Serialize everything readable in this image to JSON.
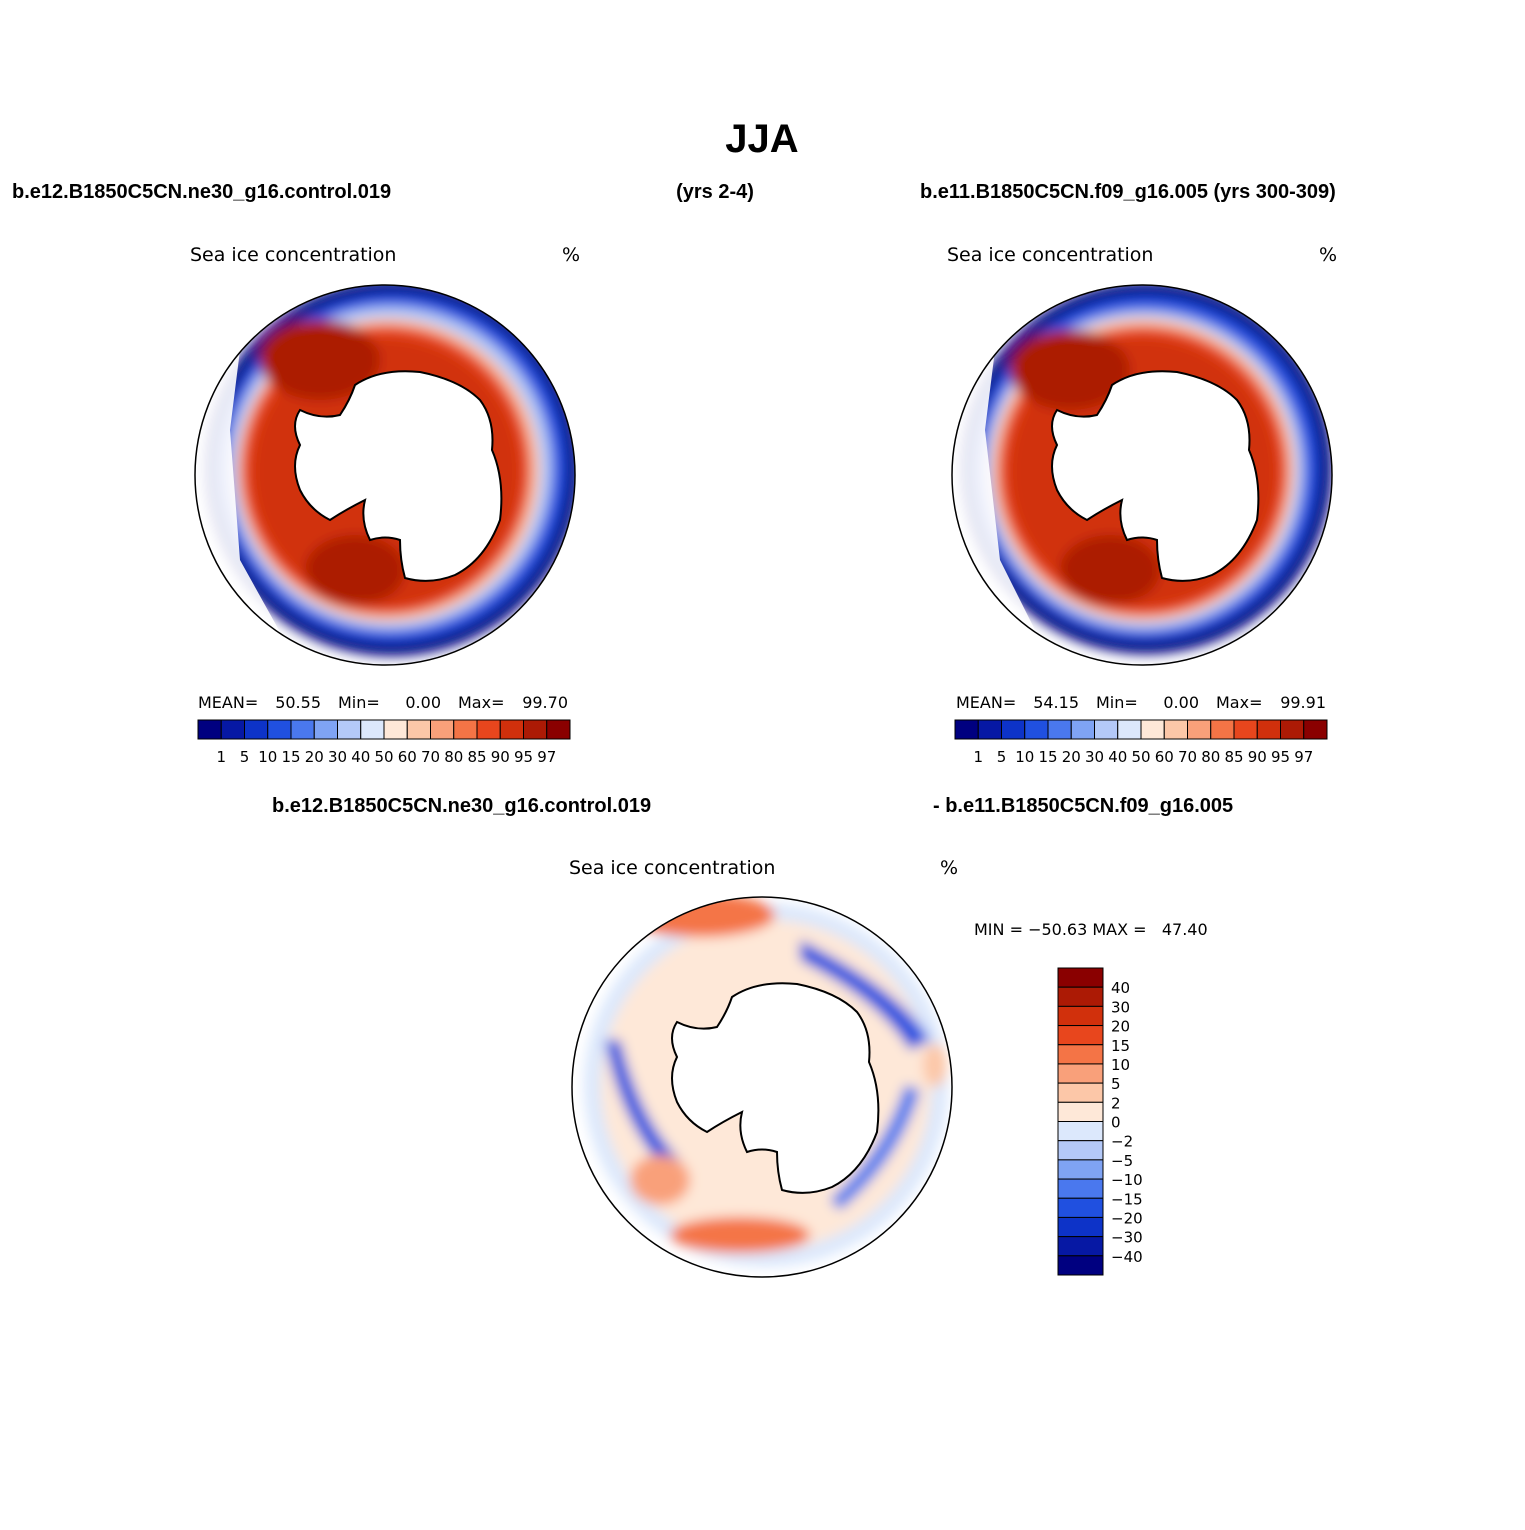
{
  "title": "JJA",
  "header": {
    "left_case": "b.e12.B1850C5CN.ne30_g16.control.019",
    "left_years": "(yrs 2-4)",
    "right_case": "b.e11.B1850C5CN.f09_g16.005 (yrs 300-309)"
  },
  "colors": {
    "levels_fill": [
      "#000080",
      "#0618a4",
      "#0d33c8",
      "#2050e0",
      "#4a78ee",
      "#7fa3f4",
      "#b4c9f8",
      "#dce8fc",
      "#fee8d8",
      "#fcc7a8",
      "#f9a07a",
      "#f47446",
      "#e8461d",
      "#d1300c",
      "#ac1a05",
      "#8a0000"
    ],
    "diff_fill": [
      "#000080",
      "#0618a4",
      "#0d33c8",
      "#2050e0",
      "#4a78ee",
      "#7fa3f4",
      "#b4c9f8",
      "#dce8fc",
      "#fee8d8",
      "#fcc7a8",
      "#f9a07a",
      "#f47446",
      "#e8461d",
      "#d1300c",
      "#ac1a05",
      "#8a0000"
    ]
  },
  "panels": [
    {
      "id": "model",
      "var_label": "Sea ice concentration",
      "units": "%",
      "stats": {
        "mean_label": "MEAN=",
        "mean": "50.55",
        "min_label": "Min=",
        "min": "0.00",
        "max_label": "Max=",
        "max": "99.70"
      }
    },
    {
      "id": "obs",
      "var_label": "Sea ice concentration",
      "units": "%",
      "stats": {
        "mean_label": "MEAN=",
        "mean": "54.15",
        "min_label": "Min=",
        "min": "0.00",
        "max_label": "Max=",
        "max": "99.91"
      }
    }
  ],
  "colorbar_ticks": [
    "1",
    "5",
    "10",
    "15",
    "20",
    "30",
    "40",
    "50",
    "60",
    "70",
    "80",
    "85",
    "90",
    "95",
    "97"
  ],
  "diff": {
    "title_left": "b.e12.B1850C5CN.ne30_g16.control.019",
    "title_right": "- b.e11.B1850C5CN.f09_g16.005",
    "var_label": "Sea ice concentration",
    "units": "%",
    "minmax": "MIN = −50.63 MAX =   47.40",
    "colorbar_ticks": [
      "40",
      "30",
      "20",
      "15",
      "10",
      "5",
      "2",
      "0",
      "−2",
      "−5",
      "−10",
      "−15",
      "−20",
      "−30",
      "−40"
    ]
  }
}
